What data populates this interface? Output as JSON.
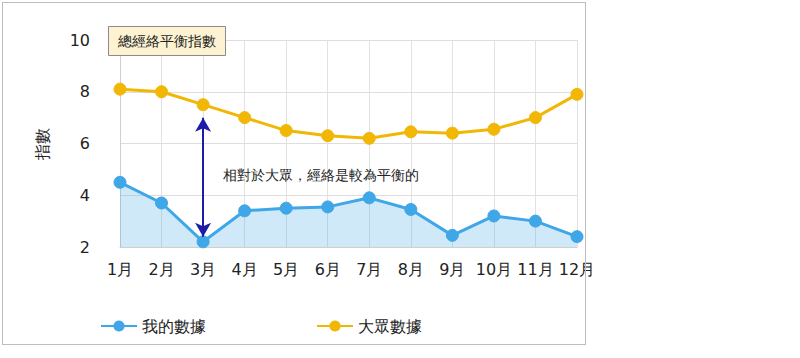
{
  "chart_data": {
    "type": "line",
    "title": "總經絡平衡指數",
    "y_label": "指數",
    "categories": [
      "1月",
      "2月",
      "3月",
      "4月",
      "5月",
      "6月",
      "7月",
      "8月",
      "9月",
      "10月",
      "11月",
      "12月"
    ],
    "series": [
      {
        "name": "我的數據",
        "type": "area",
        "color": "#3fa6e8",
        "marker": "circle",
        "values": [
          4.5,
          3.7,
          2.2,
          3.4,
          3.5,
          3.55,
          3.9,
          3.45,
          2.45,
          3.2,
          3.0,
          2.4
        ]
      },
      {
        "name": "大眾數據",
        "type": "line",
        "color": "#f2b705",
        "marker": "circle",
        "values": [
          8.1,
          8.0,
          7.5,
          7.0,
          6.5,
          6.3,
          6.2,
          6.45,
          6.4,
          6.55,
          7.0,
          7.9
        ]
      }
    ],
    "ylim": [
      2,
      10
    ],
    "yticks": [
      2,
      4,
      6,
      8,
      10
    ],
    "grid": true,
    "legend": "bottom-left",
    "annotations": [
      {
        "text": "相對於大眾，經絡是較為平衡的",
        "category": "3月",
        "y_from": 7.0,
        "y_to": 2.4
      }
    ]
  }
}
